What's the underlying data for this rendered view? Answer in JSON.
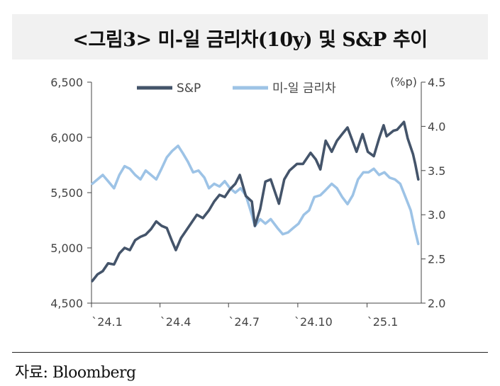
{
  "title": "<그림3> 미-일 금리차(10y) 및 S&P 추이",
  "source": "자료: Bloomberg",
  "chart_data": {
    "type": "line",
    "x_tick_labels": [
      "`24.1",
      "`24.4",
      "`24.7",
      "`24.10",
      "`25.1"
    ],
    "x_range": [
      "2024-01",
      "2025-03"
    ],
    "y_left": {
      "ticks": [
        "4,500",
        "5,000",
        "5,500",
        "6,000",
        "6,500"
      ],
      "range": [
        4500,
        6500
      ]
    },
    "y_right": {
      "unit_label": "(%p)",
      "ticks": [
        "2.0",
        "2.5",
        "3.0",
        "3.5",
        "4.0",
        "4.5"
      ],
      "range": [
        2.0,
        4.5
      ]
    },
    "legend_position": "top-center",
    "grid": false,
    "series": [
      {
        "name": "S&P",
        "axis": "left",
        "color": "#44546a",
        "points": [
          [
            "2024-01-02",
            4700
          ],
          [
            "2024-01-09",
            4760
          ],
          [
            "2024-01-16",
            4790
          ],
          [
            "2024-01-23",
            4860
          ],
          [
            "2024-01-31",
            4850
          ],
          [
            "2024-02-07",
            4950
          ],
          [
            "2024-02-14",
            5000
          ],
          [
            "2024-02-21",
            4980
          ],
          [
            "2024-02-28",
            5070
          ],
          [
            "2024-03-06",
            5100
          ],
          [
            "2024-03-13",
            5120
          ],
          [
            "2024-03-20",
            5170
          ],
          [
            "2024-03-27",
            5240
          ],
          [
            "2024-04-03",
            5200
          ],
          [
            "2024-04-10",
            5180
          ],
          [
            "2024-04-17",
            5060
          ],
          [
            "2024-04-22",
            4980
          ],
          [
            "2024-04-29",
            5090
          ],
          [
            "2024-05-06",
            5160
          ],
          [
            "2024-05-13",
            5230
          ],
          [
            "2024-05-20",
            5300
          ],
          [
            "2024-05-28",
            5270
          ],
          [
            "2024-06-05",
            5340
          ],
          [
            "2024-06-12",
            5420
          ],
          [
            "2024-06-19",
            5480
          ],
          [
            "2024-06-26",
            5460
          ],
          [
            "2024-07-03",
            5530
          ],
          [
            "2024-07-10",
            5580
          ],
          [
            "2024-07-16",
            5660
          ],
          [
            "2024-07-24",
            5470
          ],
          [
            "2024-08-01",
            5420
          ],
          [
            "2024-08-05",
            5200
          ],
          [
            "2024-08-12",
            5350
          ],
          [
            "2024-08-19",
            5600
          ],
          [
            "2024-08-26",
            5620
          ],
          [
            "2024-09-06",
            5400
          ],
          [
            "2024-09-13",
            5620
          ],
          [
            "2024-09-20",
            5700
          ],
          [
            "2024-09-30",
            5760
          ],
          [
            "2024-10-08",
            5760
          ],
          [
            "2024-10-18",
            5860
          ],
          [
            "2024-10-25",
            5800
          ],
          [
            "2024-10-31",
            5710
          ],
          [
            "2024-11-07",
            5970
          ],
          [
            "2024-11-15",
            5870
          ],
          [
            "2024-11-22",
            5970
          ],
          [
            "2024-11-29",
            6030
          ],
          [
            "2024-12-06",
            6090
          ],
          [
            "2024-12-18",
            5870
          ],
          [
            "2024-12-26",
            6030
          ],
          [
            "2025-01-02",
            5870
          ],
          [
            "2025-01-10",
            5830
          ],
          [
            "2025-01-17",
            5990
          ],
          [
            "2025-01-23",
            6110
          ],
          [
            "2025-01-27",
            6010
          ],
          [
            "2025-02-05",
            6060
          ],
          [
            "2025-02-10",
            6070
          ],
          [
            "2025-02-19",
            6140
          ],
          [
            "2025-02-24",
            5990
          ],
          [
            "2025-03-03",
            5850
          ],
          [
            "2025-03-06",
            5760
          ],
          [
            "2025-03-10",
            5620
          ]
        ]
      },
      {
        "name": "미-일 금리차",
        "axis": "right",
        "color": "#9dc3e6",
        "points": [
          [
            "2024-01-02",
            3.35
          ],
          [
            "2024-01-09",
            3.4
          ],
          [
            "2024-01-16",
            3.45
          ],
          [
            "2024-01-23",
            3.38
          ],
          [
            "2024-01-31",
            3.3
          ],
          [
            "2024-02-07",
            3.45
          ],
          [
            "2024-02-14",
            3.55
          ],
          [
            "2024-02-21",
            3.52
          ],
          [
            "2024-02-28",
            3.45
          ],
          [
            "2024-03-06",
            3.4
          ],
          [
            "2024-03-13",
            3.5
          ],
          [
            "2024-03-20",
            3.45
          ],
          [
            "2024-03-27",
            3.4
          ],
          [
            "2024-04-03",
            3.52
          ],
          [
            "2024-04-10",
            3.65
          ],
          [
            "2024-04-17",
            3.72
          ],
          [
            "2024-04-25",
            3.78
          ],
          [
            "2024-05-01",
            3.7
          ],
          [
            "2024-05-08",
            3.6
          ],
          [
            "2024-05-15",
            3.48
          ],
          [
            "2024-05-22",
            3.5
          ],
          [
            "2024-05-30",
            3.42
          ],
          [
            "2024-06-05",
            3.3
          ],
          [
            "2024-06-12",
            3.35
          ],
          [
            "2024-06-19",
            3.32
          ],
          [
            "2024-06-26",
            3.38
          ],
          [
            "2024-07-03",
            3.3
          ],
          [
            "2024-07-10",
            3.25
          ],
          [
            "2024-07-17",
            3.3
          ],
          [
            "2024-07-24",
            3.22
          ],
          [
            "2024-08-01",
            3.0
          ],
          [
            "2024-08-05",
            2.87
          ],
          [
            "2024-08-12",
            2.95
          ],
          [
            "2024-08-19",
            2.9
          ],
          [
            "2024-08-26",
            2.95
          ],
          [
            "2024-09-04",
            2.85
          ],
          [
            "2024-09-11",
            2.78
          ],
          [
            "2024-09-18",
            2.8
          ],
          [
            "2024-09-25",
            2.85
          ],
          [
            "2024-10-02",
            2.9
          ],
          [
            "2024-10-09",
            3.0
          ],
          [
            "2024-10-16",
            3.05
          ],
          [
            "2024-10-23",
            3.2
          ],
          [
            "2024-10-31",
            3.22
          ],
          [
            "2024-11-07",
            3.28
          ],
          [
            "2024-11-15",
            3.35
          ],
          [
            "2024-11-22",
            3.3
          ],
          [
            "2024-11-29",
            3.2
          ],
          [
            "2024-12-06",
            3.12
          ],
          [
            "2024-12-13",
            3.22
          ],
          [
            "2024-12-20",
            3.4
          ],
          [
            "2024-12-27",
            3.48
          ],
          [
            "2025-01-03",
            3.48
          ],
          [
            "2025-01-10",
            3.52
          ],
          [
            "2025-01-17",
            3.45
          ],
          [
            "2025-01-24",
            3.48
          ],
          [
            "2025-01-31",
            3.42
          ],
          [
            "2025-02-07",
            3.4
          ],
          [
            "2025-02-14",
            3.35
          ],
          [
            "2025-02-21",
            3.2
          ],
          [
            "2025-02-28",
            3.05
          ],
          [
            "2025-03-05",
            2.85
          ],
          [
            "2025-03-10",
            2.67
          ]
        ]
      }
    ]
  }
}
